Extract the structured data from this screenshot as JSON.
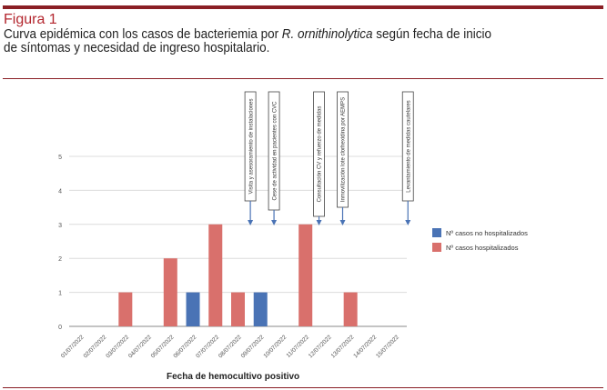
{
  "figure": {
    "label": "Figura 1",
    "caption_part1": "Curva epidémica con los casos de bacteriemia por ",
    "caption_italic": "R. ornithinolytica",
    "caption_part2": " según fecha de inicio",
    "caption_line2": "de síntomas y necesidad de ingreso hospitalario."
  },
  "colors": {
    "rule": "#8a1f25",
    "label": "#b3262e",
    "not_hospitalized": "#4a73b5",
    "hospitalized": "#d9706c",
    "annotation_arrow": "#4a73b5"
  },
  "chart_data": {
    "type": "bar",
    "title": "",
    "xlabel": "Fecha de hemocultivo positivo",
    "ylabel": "",
    "ylim": [
      0,
      5
    ],
    "yticks": [
      0,
      1,
      2,
      3,
      4,
      5
    ],
    "grid": true,
    "legend_position": "right",
    "categories": [
      "01/07/2022",
      "02/07/2022",
      "03/07/2022",
      "04/07/2022",
      "05/07/2022",
      "06/07/2022",
      "07/07/2022",
      "08/07/2022",
      "09/07/2022",
      "10/07/2022",
      "11/07/2022",
      "12/07/2022",
      "13/07/2022",
      "14/07/2022",
      "15/07/2022"
    ],
    "series": [
      {
        "name": "Nº casos no hospitalizados",
        "color": "#4a73b5",
        "values": [
          0,
          0,
          0,
          0,
          0,
          1,
          0,
          0,
          1,
          0,
          0,
          0,
          0,
          0,
          0
        ]
      },
      {
        "name": "Nº casos hospitalizados",
        "color": "#d9706c",
        "values": [
          0,
          0,
          1,
          0,
          2,
          0,
          3,
          1,
          0,
          0,
          3,
          0,
          1,
          0,
          0
        ]
      }
    ],
    "annotations": [
      {
        "text": "Visita y asesoramiento de instalaciones",
        "x": 8.05
      },
      {
        "text": "Cese de actividad en pacientes con CVC",
        "x": 9.1
      },
      {
        "text": "Consultación CV y refuerzo de medidas",
        "x": 11.1
      },
      {
        "text": "Inmovilización lote clorhexidina por AEMPS",
        "x": 12.15
      },
      {
        "text": "Levantamiento de medidas cautelares",
        "x": 15.05
      }
    ]
  }
}
